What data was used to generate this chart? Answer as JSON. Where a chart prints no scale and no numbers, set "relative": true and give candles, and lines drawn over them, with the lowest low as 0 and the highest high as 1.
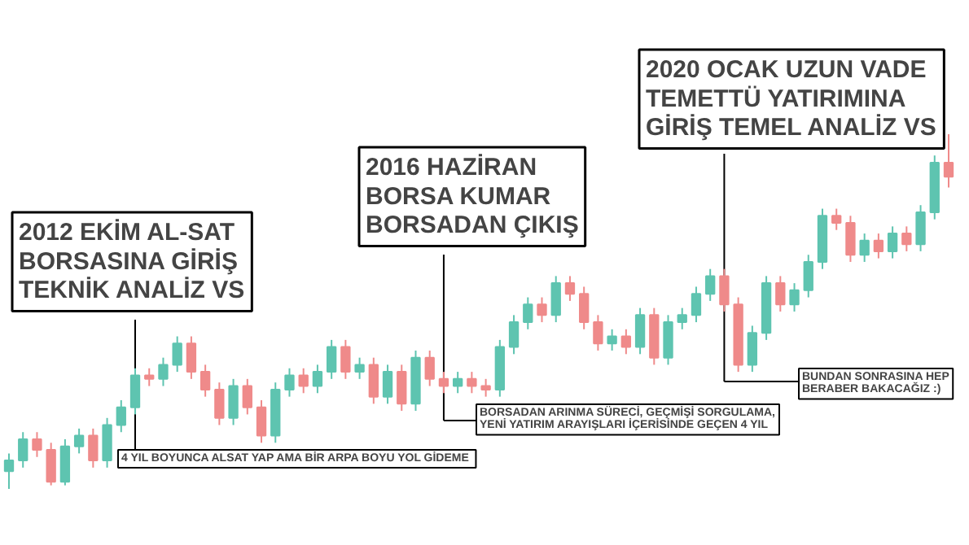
{
  "chart_data": {
    "type": "candlestick",
    "relative": true,
    "categories": [
      null,
      null,
      null,
      null,
      null,
      null,
      null,
      null,
      null,
      null,
      null,
      null,
      null,
      null,
      null,
      null,
      null,
      null,
      null,
      null,
      null,
      null,
      null,
      null,
      null,
      null,
      null,
      null,
      null,
      null,
      null,
      null,
      null,
      null,
      null,
      null,
      null,
      null,
      null,
      null,
      null,
      null,
      null,
      null,
      null,
      null,
      null,
      null,
      null,
      null,
      null,
      null,
      null,
      null,
      null,
      null,
      null,
      null,
      null,
      null,
      null,
      null,
      null,
      null,
      null,
      null,
      null,
      null
    ],
    "ohlc": [
      [
        0.05,
        0.1,
        0.0,
        0.08
      ],
      [
        0.08,
        0.16,
        0.06,
        0.14
      ],
      [
        0.14,
        0.16,
        0.09,
        0.11
      ],
      [
        0.11,
        0.13,
        0.01,
        0.02
      ],
      [
        0.02,
        0.14,
        0.01,
        0.12
      ],
      [
        0.12,
        0.17,
        0.1,
        0.15
      ],
      [
        0.15,
        0.17,
        0.06,
        0.08
      ],
      [
        0.08,
        0.2,
        0.06,
        0.18
      ],
      [
        0.18,
        0.25,
        0.16,
        0.23
      ],
      [
        0.23,
        0.34,
        0.21,
        0.32
      ],
      [
        0.32,
        0.34,
        0.29,
        0.31
      ],
      [
        0.31,
        0.37,
        0.29,
        0.35
      ],
      [
        0.35,
        0.43,
        0.33,
        0.41
      ],
      [
        0.41,
        0.43,
        0.31,
        0.33
      ],
      [
        0.33,
        0.35,
        0.26,
        0.28
      ],
      [
        0.28,
        0.3,
        0.18,
        0.2
      ],
      [
        0.2,
        0.31,
        0.18,
        0.29
      ],
      [
        0.29,
        0.31,
        0.21,
        0.23
      ],
      [
        0.23,
        0.25,
        0.13,
        0.15
      ],
      [
        0.15,
        0.3,
        0.13,
        0.28
      ],
      [
        0.28,
        0.34,
        0.26,
        0.32
      ],
      [
        0.32,
        0.34,
        0.27,
        0.29
      ],
      [
        0.29,
        0.35,
        0.27,
        0.33
      ],
      [
        0.33,
        0.42,
        0.31,
        0.4
      ],
      [
        0.4,
        0.42,
        0.31,
        0.33
      ],
      [
        0.33,
        0.37,
        0.31,
        0.35
      ],
      [
        0.35,
        0.37,
        0.24,
        0.26
      ],
      [
        0.26,
        0.35,
        0.24,
        0.33
      ],
      [
        0.33,
        0.35,
        0.22,
        0.24
      ],
      [
        0.24,
        0.39,
        0.22,
        0.37
      ],
      [
        0.37,
        0.39,
        0.29,
        0.31
      ],
      [
        0.31,
        0.33,
        0.27,
        0.29
      ],
      [
        0.29,
        0.33,
        0.27,
        0.31
      ],
      [
        0.31,
        0.33,
        0.27,
        0.29
      ],
      [
        0.29,
        0.31,
        0.26,
        0.28
      ],
      [
        0.28,
        0.42,
        0.26,
        0.4
      ],
      [
        0.4,
        0.49,
        0.38,
        0.47
      ],
      [
        0.47,
        0.54,
        0.45,
        0.52
      ],
      [
        0.52,
        0.54,
        0.47,
        0.49
      ],
      [
        0.49,
        0.6,
        0.47,
        0.58
      ],
      [
        0.58,
        0.6,
        0.53,
        0.55
      ],
      [
        0.55,
        0.57,
        0.45,
        0.47
      ],
      [
        0.47,
        0.49,
        0.39,
        0.41
      ],
      [
        0.41,
        0.45,
        0.39,
        0.43
      ],
      [
        0.43,
        0.45,
        0.38,
        0.4
      ],
      [
        0.4,
        0.51,
        0.38,
        0.49
      ],
      [
        0.49,
        0.51,
        0.35,
        0.37
      ],
      [
        0.37,
        0.49,
        0.35,
        0.47
      ],
      [
        0.47,
        0.51,
        0.45,
        0.49
      ],
      [
        0.49,
        0.57,
        0.47,
        0.55
      ],
      [
        0.55,
        0.62,
        0.53,
        0.6
      ],
      [
        0.6,
        0.62,
        0.5,
        0.52
      ],
      [
        0.52,
        0.54,
        0.33,
        0.35
      ],
      [
        0.35,
        0.46,
        0.33,
        0.44
      ],
      [
        0.44,
        0.6,
        0.42,
        0.58
      ],
      [
        0.58,
        0.6,
        0.5,
        0.52
      ],
      [
        0.52,
        0.58,
        0.5,
        0.56
      ],
      [
        0.56,
        0.66,
        0.54,
        0.64
      ],
      [
        0.64,
        0.79,
        0.62,
        0.77
      ],
      [
        0.77,
        0.79,
        0.73,
        0.75
      ],
      [
        0.75,
        0.77,
        0.64,
        0.66
      ],
      [
        0.66,
        0.72,
        0.64,
        0.7
      ],
      [
        0.7,
        0.72,
        0.65,
        0.67
      ],
      [
        0.67,
        0.74,
        0.65,
        0.72
      ],
      [
        0.72,
        0.74,
        0.67,
        0.69
      ],
      [
        0.69,
        0.8,
        0.67,
        0.78
      ],
      [
        0.78,
        0.94,
        0.76,
        0.92
      ],
      [
        0.92,
        1.0,
        0.85,
        0.88
      ]
    ],
    "colors": [
      "#5ec4b0",
      "#5ec4b0",
      "#ef8a8a",
      "#ef8a8a",
      "#5ec4b0",
      "#5ec4b0",
      "#ef8a8a",
      "#5ec4b0",
      "#5ec4b0",
      "#5ec4b0",
      "#ef8a8a",
      "#5ec4b0",
      "#5ec4b0",
      "#ef8a8a",
      "#ef8a8a",
      "#ef8a8a",
      "#5ec4b0",
      "#ef8a8a",
      "#ef8a8a",
      "#5ec4b0",
      "#5ec4b0",
      "#ef8a8a",
      "#5ec4b0",
      "#5ec4b0",
      "#ef8a8a",
      "#5ec4b0",
      "#ef8a8a",
      "#5ec4b0",
      "#ef8a8a",
      "#5ec4b0",
      "#ef8a8a",
      "#ef8a8a",
      "#5ec4b0",
      "#ef8a8a",
      "#ef8a8a",
      "#5ec4b0",
      "#5ec4b0",
      "#5ec4b0",
      "#ef8a8a",
      "#5ec4b0",
      "#ef8a8a",
      "#ef8a8a",
      "#ef8a8a",
      "#5ec4b0",
      "#ef8a8a",
      "#5ec4b0",
      "#ef8a8a",
      "#5ec4b0",
      "#5ec4b0",
      "#5ec4b0",
      "#5ec4b0",
      "#ef8a8a",
      "#ef8a8a",
      "#5ec4b0",
      "#5ec4b0",
      "#ef8a8a",
      "#5ec4b0",
      "#5ec4b0",
      "#5ec4b0",
      "#ef8a8a",
      "#ef8a8a",
      "#5ec4b0",
      "#ef8a8a",
      "#5ec4b0",
      "#ef8a8a",
      "#5ec4b0",
      "#5ec4b0",
      "#ef8a8a"
    ],
    "annotations": [
      "2012 EKİM AL-SAT\nBORSASINA GİRİŞ\nTEKNİK ANALİZ VS",
      "2016 HAZİRAN\nBORSA KUMAR\nBORSADAN ÇIKIŞ",
      "2020 OCAK UZUN VADE\nTEMETTÜ YATIRIMINA\nGİRİŞ TEMEL ANALİZ VS",
      "4 YIL BOYUNCA ALSAT YAP AMA BİR ARPA BOYU YOL GİDEME",
      "BORSADAN ARINMA SÜRECİ, GEÇMİŞİ SORGULAMA,\nYENİ YATIRIM ARAYIŞLARI İÇERİSİNDE GEÇEN 4 YIL",
      "BUNDAN SONRASINA HEP\nBERABER BAKACAĞIZ  :)"
    ]
  }
}
